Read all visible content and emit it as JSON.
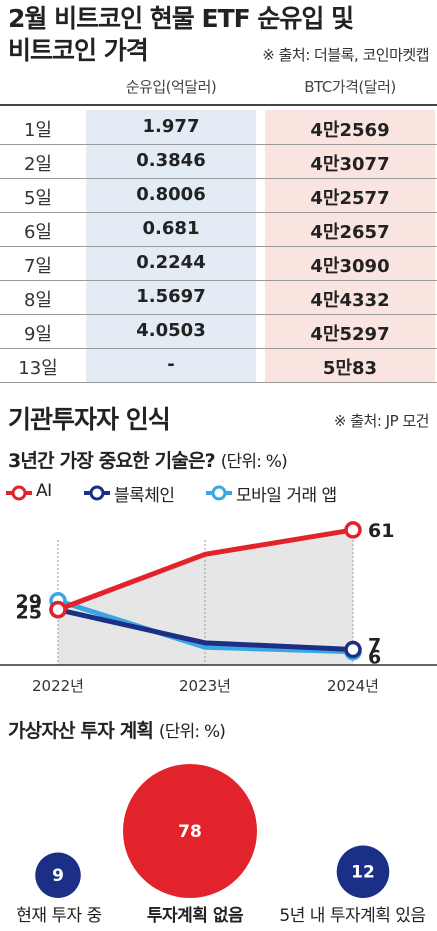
{
  "header": {
    "title_line1": "2월 비트코인 현물 ETF 순유입 및",
    "title_line2": "비트코인 가격",
    "source": "※ 출처: 더블록, 코인마켓캡"
  },
  "table": {
    "col_flow": "순유입(억달러)",
    "col_price": "BTC가격(달러)",
    "rows": [
      {
        "day": "1일",
        "flow": "1.977",
        "price": "4만2569"
      },
      {
        "day": "2일",
        "flow": "0.3846",
        "price": "4만3077"
      },
      {
        "day": "5일",
        "flow": "0.8006",
        "price": "4만2577"
      },
      {
        "day": "6일",
        "flow": "0.681",
        "price": "4만2657"
      },
      {
        "day": "7일",
        "flow": "0.2244",
        "price": "4만3090"
      },
      {
        "day": "8일",
        "flow": "1.5697",
        "price": "4만4332"
      },
      {
        "day": "9일",
        "flow": "4.0503",
        "price": "4만5297"
      },
      {
        "day": "13일",
        "flow": "-",
        "price": "5만83"
      }
    ]
  },
  "survey": {
    "title": "기관투자자 인식",
    "source": "※ 출처: JP 모건"
  },
  "chart_data": [
    {
      "type": "line",
      "title": "3년간 가장 중요한 기술은?",
      "unit": "(단위: %)",
      "x": [
        "2022년",
        "2023년",
        "2024년"
      ],
      "ylim": [
        0,
        70
      ],
      "series": [
        {
          "name": "AI",
          "color": "#e3232b",
          "values": [
            25,
            50,
            61
          ],
          "labels": [
            "25",
            "",
            "61"
          ]
        },
        {
          "name": "블록체인",
          "color": "#1c2f86",
          "values": [
            25,
            10,
            7
          ],
          "labels": [
            "",
            "",
            "7"
          ]
        },
        {
          "name": "모바일 거래 앱",
          "color": "#3aa7e3",
          "values": [
            29,
            8,
            6
          ],
          "labels": [
            "29",
            "",
            "6"
          ]
        }
      ]
    },
    {
      "type": "bubble",
      "title": "가상자산 투자 계획",
      "unit": "(단위: %)",
      "categories": [
        "현재 투자 중",
        "투자계획 없음",
        "5년 내 투자계획 있음"
      ],
      "values": [
        9,
        78,
        12
      ],
      "colors": [
        "#1c2f86",
        "#e3232b",
        "#1c2f86"
      ]
    }
  ]
}
